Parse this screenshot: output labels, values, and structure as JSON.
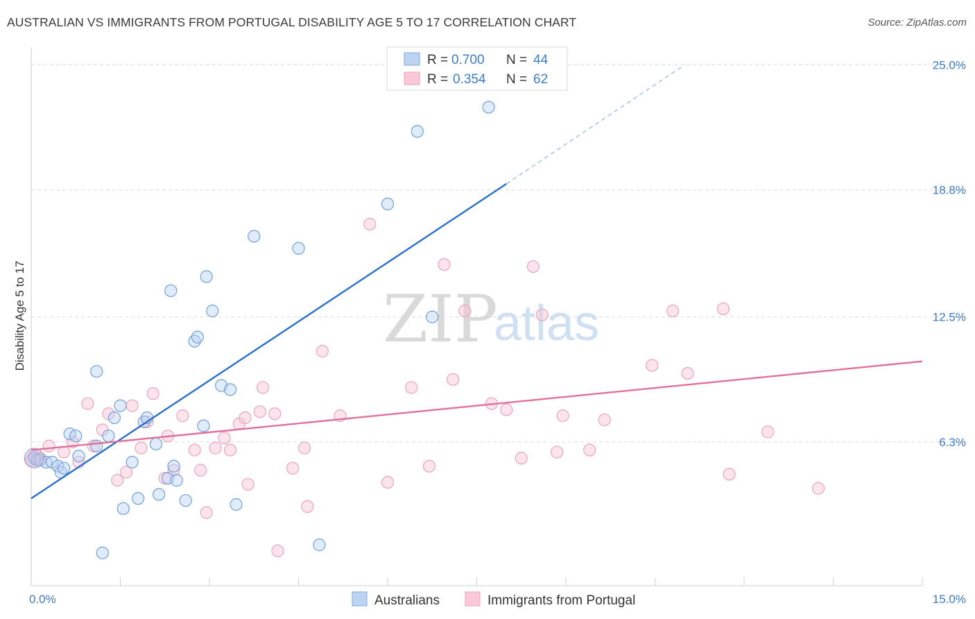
{
  "header": {
    "title": "AUSTRALIAN VS IMMIGRANTS FROM PORTUGAL DISABILITY AGE 5 TO 17 CORRELATION CHART",
    "source": "Source: ZipAtlas.com"
  },
  "watermark": {
    "part1": "ZIP",
    "part2": "atlas"
  },
  "legend": {
    "rows": [
      {
        "r_label": "R =",
        "r_value": "0.700",
        "n_label": "N =",
        "n_value": "44"
      },
      {
        "r_label": "R =",
        "r_value": "0.354",
        "n_label": "N =",
        "n_value": "62"
      }
    ]
  },
  "chart_data": {
    "type": "scatter",
    "title": "AUSTRALIAN VS IMMIGRANTS FROM PORTUGAL DISABILITY AGE 5 TO 17 CORRELATION CHART",
    "xlabel": "",
    "ylabel": "Disability Age 5 to 17",
    "xlim": [
      0,
      15
    ],
    "ylim": [
      0,
      25.6
    ],
    "x_tick_labels": [
      "0.0%",
      "15.0%"
    ],
    "y_ticks": [
      6.3,
      12.5,
      18.8,
      25.0
    ],
    "y_tick_labels": [
      "6.3%",
      "12.5%",
      "18.8%",
      "25.0%"
    ],
    "grid": "horizontal dashed",
    "legend_position": "top-center",
    "colors": {
      "australians": "#6fa3e0",
      "portugal": "#f0a0bc",
      "australians_line": "#2a6fc9",
      "portugal_line": "#e0709a"
    },
    "series": [
      {
        "name": "Australians",
        "r": 0.7,
        "n": 44,
        "trend": {
          "x0": 0.0,
          "y0": 3.5,
          "x1": 8.0,
          "y1": 19.1,
          "dash_to_x": 11.0,
          "dash_to_y": 25.0
        },
        "points": [
          [
            0.05,
            5.5
          ],
          [
            0.1,
            5.4
          ],
          [
            0.15,
            5.4
          ],
          [
            0.25,
            5.3
          ],
          [
            0.35,
            5.3
          ],
          [
            0.45,
            5.1
          ],
          [
            0.5,
            4.8
          ],
          [
            0.55,
            5.0
          ],
          [
            0.8,
            5.6
          ],
          [
            0.65,
            6.7
          ],
          [
            0.75,
            6.6
          ],
          [
            1.1,
            6.1
          ],
          [
            1.3,
            6.6
          ],
          [
            1.4,
            7.5
          ],
          [
            1.5,
            8.1
          ],
          [
            1.55,
            3.0
          ],
          [
            1.7,
            5.3
          ],
          [
            1.8,
            3.5
          ],
          [
            1.9,
            7.3
          ],
          [
            1.95,
            7.5
          ],
          [
            2.1,
            6.2
          ],
          [
            2.15,
            3.7
          ],
          [
            2.3,
            4.5
          ],
          [
            2.4,
            5.1
          ],
          [
            2.45,
            4.4
          ],
          [
            2.6,
            3.4
          ],
          [
            2.75,
            11.3
          ],
          [
            2.8,
            11.5
          ],
          [
            2.9,
            7.1
          ],
          [
            3.05,
            12.8
          ],
          [
            2.95,
            14.5
          ],
          [
            3.2,
            9.1
          ],
          [
            3.35,
            8.9
          ],
          [
            3.45,
            3.2
          ],
          [
            3.75,
            16.5
          ],
          [
            4.5,
            15.9
          ],
          [
            4.85,
            1.2
          ],
          [
            1.2,
            0.8
          ],
          [
            1.1,
            9.8
          ],
          [
            2.35,
            13.8
          ],
          [
            6.0,
            18.1
          ],
          [
            6.5,
            21.7
          ],
          [
            7.7,
            22.9
          ],
          [
            6.75,
            12.5
          ]
        ]
      },
      {
        "name": "Immigrants from Portugal",
        "r": 0.354,
        "n": 62,
        "trend": {
          "x0": 0.0,
          "y0": 5.9,
          "x1": 15.0,
          "y1": 10.3
        },
        "points": [
          [
            0.05,
            5.6
          ],
          [
            0.15,
            5.5
          ],
          [
            0.3,
            6.1
          ],
          [
            0.55,
            5.8
          ],
          [
            0.7,
            6.3
          ],
          [
            0.8,
            5.3
          ],
          [
            0.95,
            8.2
          ],
          [
            1.05,
            6.1
          ],
          [
            1.2,
            6.9
          ],
          [
            1.3,
            7.7
          ],
          [
            1.45,
            4.4
          ],
          [
            1.6,
            4.8
          ],
          [
            1.7,
            8.1
          ],
          [
            1.85,
            6.0
          ],
          [
            1.95,
            7.3
          ],
          [
            2.05,
            8.7
          ],
          [
            2.25,
            4.5
          ],
          [
            2.3,
            6.6
          ],
          [
            2.4,
            4.9
          ],
          [
            2.55,
            7.6
          ],
          [
            2.75,
            5.9
          ],
          [
            2.85,
            4.9
          ],
          [
            2.95,
            2.8
          ],
          [
            3.1,
            6.0
          ],
          [
            3.25,
            6.5
          ],
          [
            3.35,
            5.9
          ],
          [
            3.5,
            7.2
          ],
          [
            3.6,
            7.5
          ],
          [
            3.65,
            4.2
          ],
          [
            3.85,
            7.8
          ],
          [
            3.9,
            9.0
          ],
          [
            4.1,
            7.7
          ],
          [
            4.15,
            0.9
          ],
          [
            4.4,
            5.0
          ],
          [
            4.6,
            6.0
          ],
          [
            4.65,
            3.1
          ],
          [
            4.9,
            10.8
          ],
          [
            5.2,
            7.6
          ],
          [
            5.7,
            17.1
          ],
          [
            6.0,
            4.3
          ],
          [
            6.4,
            9.0
          ],
          [
            6.7,
            5.1
          ],
          [
            6.95,
            15.1
          ],
          [
            7.1,
            9.4
          ],
          [
            7.3,
            12.8
          ],
          [
            7.75,
            8.2
          ],
          [
            8.0,
            7.9
          ],
          [
            8.25,
            5.5
          ],
          [
            8.45,
            15.0
          ],
          [
            8.6,
            12.6
          ],
          [
            8.85,
            5.8
          ],
          [
            8.95,
            7.6
          ],
          [
            9.4,
            5.9
          ],
          [
            9.65,
            7.4
          ],
          [
            10.45,
            10.1
          ],
          [
            10.8,
            12.8
          ],
          [
            11.05,
            9.7
          ],
          [
            11.65,
            12.9
          ],
          [
            11.75,
            4.7
          ],
          [
            12.4,
            6.8
          ],
          [
            13.25,
            4.0
          ],
          [
            0.0,
            5.4
          ]
        ]
      }
    ]
  },
  "bottom_legend": {
    "items": [
      {
        "label": "Australians"
      },
      {
        "label": "Immigrants from Portugal"
      }
    ]
  }
}
